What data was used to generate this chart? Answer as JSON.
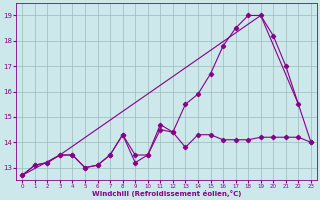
{
  "xlabel": "Windchill (Refroidissement éolien,°C)",
  "bg_color": "#cce8ea",
  "line_color": "#880088",
  "grid_color": "#99bbbb",
  "xlim": [
    -0.5,
    23.5
  ],
  "ylim": [
    12.5,
    19.5
  ],
  "yticks": [
    13,
    14,
    15,
    16,
    17,
    18,
    19
  ],
  "xticks": [
    0,
    1,
    2,
    3,
    4,
    5,
    6,
    7,
    8,
    9,
    10,
    11,
    12,
    13,
    14,
    15,
    16,
    17,
    18,
    19,
    20,
    21,
    22,
    23
  ],
  "line1_x": [
    0,
    1,
    2,
    3,
    4,
    5,
    6,
    7,
    8,
    9,
    10,
    11,
    12,
    13,
    14,
    15,
    16,
    17,
    18,
    19,
    20,
    21,
    22,
    23
  ],
  "line1_y": [
    12.7,
    13.1,
    13.2,
    13.5,
    13.5,
    13.0,
    13.1,
    13.5,
    14.3,
    13.5,
    13.5,
    14.5,
    14.4,
    13.8,
    14.3,
    14.3,
    14.1,
    14.1,
    14.1,
    14.2,
    14.2,
    14.2,
    14.2,
    14.0
  ],
  "line2_x": [
    0,
    1,
    2,
    3,
    4,
    5,
    6,
    7,
    8,
    9,
    10,
    11,
    12,
    13,
    14,
    15,
    16,
    17,
    18,
    19,
    20,
    21,
    22,
    23
  ],
  "line2_y": [
    12.7,
    13.1,
    13.2,
    13.5,
    13.5,
    13.0,
    13.1,
    13.5,
    14.3,
    13.2,
    13.5,
    14.7,
    14.4,
    15.5,
    15.9,
    16.7,
    17.8,
    18.5,
    19.0,
    19.0,
    18.2,
    17.0,
    15.5,
    14.0
  ],
  "line3_x": [
    0,
    3,
    19,
    22
  ],
  "line3_y": [
    12.7,
    13.5,
    19.0,
    15.5
  ]
}
